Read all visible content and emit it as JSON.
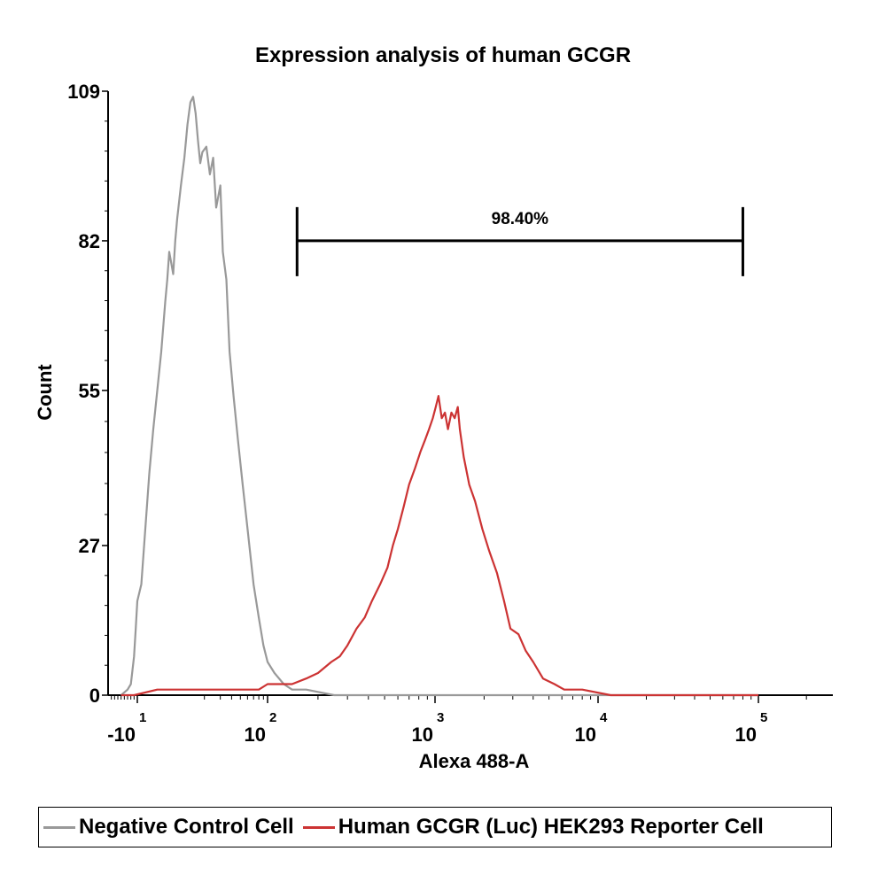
{
  "chart_data": {
    "type": "line",
    "title": "Expression analysis of human GCGR",
    "xlabel": "Alexa 488-A",
    "ylabel": "Count",
    "x_scale": "logicle",
    "ylim": [
      0,
      109
    ],
    "yticks": [
      {
        "value": 0,
        "label": "0"
      },
      {
        "value": 27,
        "label": "27"
      },
      {
        "value": 55,
        "label": "55"
      },
      {
        "value": 82,
        "label": "82"
      },
      {
        "value": 109,
        "label": "109"
      }
    ],
    "xticks": [
      {
        "value": -10,
        "base": "-10",
        "exp": "1"
      },
      {
        "value": 100,
        "base": "10",
        "exp": "2"
      },
      {
        "value": 1000,
        "base": "10",
        "exp": "3"
      },
      {
        "value": 10000,
        "base": "10",
        "exp": "4"
      },
      {
        "value": 100000,
        "base": "10",
        "exp": "5"
      }
    ],
    "gate": {
      "label": "98.40%",
      "x_start": 150,
      "x_end": 80000,
      "level": 82
    },
    "grid": false,
    "legend_position": "bottom",
    "series": [
      {
        "name": "Negative Control Cell",
        "color": "#999999",
        "points": [
          [
            -60,
            0
          ],
          [
            -40,
            1
          ],
          [
            -30,
            2
          ],
          [
            -20,
            7
          ],
          [
            -15,
            12
          ],
          [
            -10,
            17
          ],
          [
            -8,
            20
          ],
          [
            -6,
            30
          ],
          [
            -4,
            40
          ],
          [
            -2,
            48
          ],
          [
            0,
            55
          ],
          [
            2,
            62
          ],
          [
            4,
            71
          ],
          [
            5,
            75
          ],
          [
            6,
            80
          ],
          [
            7,
            78
          ],
          [
            8,
            76
          ],
          [
            9,
            82
          ],
          [
            10,
            86
          ],
          [
            11,
            92
          ],
          [
            12,
            97
          ],
          [
            13,
            103
          ],
          [
            14,
            107
          ],
          [
            15,
            108
          ],
          [
            16,
            105
          ],
          [
            17,
            100
          ],
          [
            18,
            96
          ],
          [
            19,
            98
          ],
          [
            21,
            99
          ],
          [
            23,
            94
          ],
          [
            25,
            97
          ],
          [
            27,
            88
          ],
          [
            30,
            92
          ],
          [
            32,
            80
          ],
          [
            35,
            75
          ],
          [
            38,
            62
          ],
          [
            42,
            54
          ],
          [
            47,
            46
          ],
          [
            53,
            38
          ],
          [
            60,
            30
          ],
          [
            70,
            20
          ],
          [
            80,
            14
          ],
          [
            90,
            9
          ],
          [
            100,
            6
          ],
          [
            110,
            4
          ],
          [
            125,
            2
          ],
          [
            140,
            1
          ],
          [
            170,
            1
          ],
          [
            250,
            0
          ],
          [
            100000,
            0
          ]
        ]
      },
      {
        "name": "Human GCGR (Luc) HEK293 Reporter Cell",
        "color": "#cc3333",
        "points": [
          [
            -60,
            0
          ],
          [
            -20,
            0
          ],
          [
            0,
            1
          ],
          [
            30,
            1
          ],
          [
            60,
            1
          ],
          [
            80,
            1
          ],
          [
            100,
            2
          ],
          [
            140,
            2
          ],
          [
            170,
            3
          ],
          [
            200,
            4
          ],
          [
            240,
            6
          ],
          [
            270,
            7
          ],
          [
            300,
            9
          ],
          [
            340,
            12
          ],
          [
            380,
            14
          ],
          [
            420,
            17
          ],
          [
            470,
            20
          ],
          [
            520,
            23
          ],
          [
            560,
            27
          ],
          [
            600,
            30
          ],
          [
            650,
            34
          ],
          [
            700,
            38
          ],
          [
            760,
            41
          ],
          [
            820,
            44
          ],
          [
            870,
            46
          ],
          [
            920,
            48
          ],
          [
            970,
            50
          ],
          [
            1010,
            52
          ],
          [
            1050,
            54
          ],
          [
            1100,
            50
          ],
          [
            1150,
            51
          ],
          [
            1200,
            48
          ],
          [
            1260,
            51
          ],
          [
            1320,
            50
          ],
          [
            1380,
            52
          ],
          [
            1420,
            48
          ],
          [
            1500,
            43
          ],
          [
            1620,
            38
          ],
          [
            1760,
            35
          ],
          [
            1950,
            30
          ],
          [
            2150,
            26
          ],
          [
            2400,
            22
          ],
          [
            2650,
            17
          ],
          [
            2900,
            12
          ],
          [
            3250,
            11
          ],
          [
            3600,
            8
          ],
          [
            4000,
            6
          ],
          [
            4600,
            3
          ],
          [
            5400,
            2
          ],
          [
            6200,
            1
          ],
          [
            8000,
            1
          ],
          [
            12000,
            0
          ],
          [
            100000,
            0
          ]
        ]
      }
    ]
  }
}
